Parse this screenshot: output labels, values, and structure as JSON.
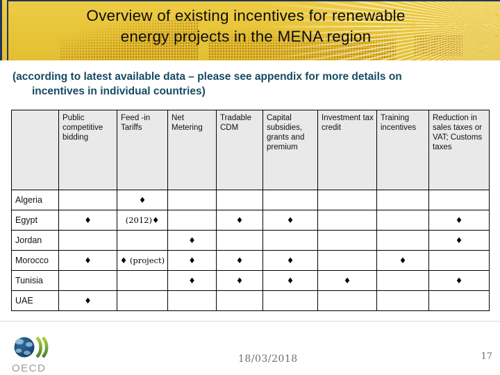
{
  "slide": {
    "title_line1": "Overview of existing incentives for renewable",
    "title_line2": "energy projects in the MENA region",
    "subtitle_line1": "(according to latest available data – please see appendix for more details on",
    "subtitle_line2": "incentives in individual countries)",
    "footer": {
      "date": "18/03/2018",
      "page_number": "17"
    },
    "logo": {
      "text": "OECD"
    },
    "colors": {
      "banner_yellow": "#e7c437",
      "navy_accent": "#23355c",
      "subtitle_blue": "#174a63",
      "table_header_gray": "#e9e9e9",
      "footer_gray": "#6e6e6e",
      "logo_globe_blue": "#14527f",
      "logo_leaf_green": "#8dbf3c"
    },
    "marker_symbol": "♦"
  },
  "table": {
    "columns": [
      "",
      "Public competitive bidding",
      "Feed -in Tariffs",
      "Net Metering",
      "Tradable CDM",
      "Capital subsidies, grants and premium",
      "Investment tax credit",
      "Training incentives",
      "Reduction in sales taxes or VAT; Customs taxes"
    ],
    "rows": [
      {
        "country": "Algeria",
        "cells": [
          "",
          "♦",
          "",
          "",
          "",
          "",
          "",
          ""
        ]
      },
      {
        "country": "Egypt",
        "cells": [
          "♦",
          "(2012)♦",
          "",
          "♦",
          "♦",
          "",
          "",
          "♦"
        ]
      },
      {
        "country": "Jordan",
        "cells": [
          "",
          "",
          "♦",
          "",
          "",
          "",
          "",
          "♦"
        ]
      },
      {
        "country": "Morocco",
        "cells": [
          "♦",
          "♦ (project)",
          "♦",
          "♦",
          "♦",
          "",
          "♦",
          ""
        ]
      },
      {
        "country": "Tunisia",
        "cells": [
          "",
          "",
          "♦",
          "♦",
          "♦",
          "♦",
          "",
          "♦"
        ]
      },
      {
        "country": "UAE",
        "cells": [
          "♦",
          "",
          "",
          "",
          "",
          "",
          "",
          ""
        ]
      }
    ]
  }
}
